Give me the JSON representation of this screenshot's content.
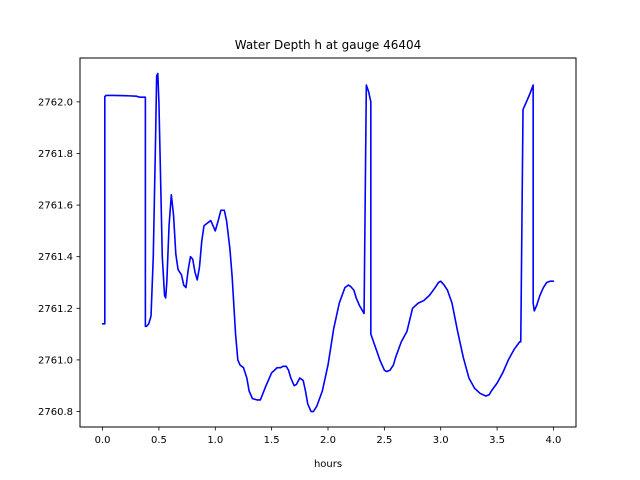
{
  "chart_data": {
    "type": "line",
    "title": "Water Depth h at gauge 46404",
    "xlabel": "hours",
    "ylabel": "",
    "xlim": [
      -0.2,
      4.2
    ],
    "ylim": [
      2760.74,
      2762.17
    ],
    "xticks": [
      0.0,
      0.5,
      1.0,
      1.5,
      2.0,
      2.5,
      3.0,
      3.5,
      4.0
    ],
    "xtick_labels": [
      "0.0",
      "0.5",
      "1.0",
      "1.5",
      "2.0",
      "2.5",
      "3.0",
      "3.5",
      "4.0"
    ],
    "yticks": [
      2760.8,
      2761.0,
      2761.2,
      2761.4,
      2761.6,
      2761.8,
      2762.0
    ],
    "ytick_labels": [
      "2760.8",
      "2761.0",
      "2761.2",
      "2761.4",
      "2761.6",
      "2761.8",
      "2762.0"
    ],
    "grid": false,
    "series": [
      {
        "color": "#0000ff",
        "x": [
          0.0,
          0.02,
          0.02,
          0.03,
          0.1,
          0.2,
          0.3,
          0.33,
          0.38,
          0.38,
          0.39,
          0.41,
          0.43,
          0.45,
          0.47,
          0.48,
          0.49,
          0.5,
          0.51,
          0.53,
          0.55,
          0.56,
          0.57,
          0.59,
          0.61,
          0.63,
          0.65,
          0.67,
          0.7,
          0.72,
          0.74,
          0.76,
          0.78,
          0.8,
          0.82,
          0.84,
          0.86,
          0.88,
          0.9,
          0.93,
          0.96,
          0.98,
          1.0,
          1.02,
          1.05,
          1.08,
          1.1,
          1.13,
          1.15,
          1.18,
          1.2,
          1.22,
          1.25,
          1.28,
          1.3,
          1.33,
          1.37,
          1.4,
          1.45,
          1.5,
          1.55,
          1.58,
          1.6,
          1.63,
          1.65,
          1.67,
          1.7,
          1.72,
          1.75,
          1.78,
          1.8,
          1.82,
          1.85,
          1.87,
          1.9,
          1.95,
          2.0,
          2.05,
          2.1,
          2.15,
          2.18,
          2.2,
          2.23,
          2.25,
          2.28,
          2.32,
          2.34,
          2.34,
          2.36,
          2.38,
          2.38,
          2.42,
          2.46,
          2.5,
          2.52,
          2.55,
          2.58,
          2.6,
          2.65,
          2.7,
          2.75,
          2.8,
          2.85,
          2.9,
          2.95,
          2.98,
          3.0,
          3.03,
          3.06,
          3.1,
          3.15,
          3.2,
          3.25,
          3.3,
          3.35,
          3.4,
          3.43,
          3.45,
          3.5,
          3.55,
          3.6,
          3.65,
          3.7,
          3.71,
          3.73,
          3.76,
          3.79,
          3.82,
          3.82,
          3.83,
          3.85,
          3.88,
          3.91,
          3.94,
          3.97,
          4.0
        ],
        "y": [
          2761.14,
          2761.14,
          2762.02,
          2762.025,
          2762.025,
          2762.024,
          2762.022,
          2762.018,
          2762.018,
          2761.13,
          2761.13,
          2761.14,
          2761.17,
          2761.4,
          2761.85,
          2762.1,
          2762.11,
          2762.0,
          2761.8,
          2761.4,
          2761.25,
          2761.24,
          2761.3,
          2761.52,
          2761.64,
          2761.56,
          2761.41,
          2761.35,
          2761.33,
          2761.29,
          2761.28,
          2761.35,
          2761.4,
          2761.39,
          2761.34,
          2761.31,
          2761.36,
          2761.46,
          2761.52,
          2761.53,
          2761.54,
          2761.52,
          2761.5,
          2761.53,
          2761.58,
          2761.58,
          2761.54,
          2761.43,
          2761.32,
          2761.1,
          2761.0,
          2760.98,
          2760.97,
          2760.93,
          2760.88,
          2760.85,
          2760.845,
          2760.845,
          2760.9,
          2760.95,
          2760.97,
          2760.97,
          2760.975,
          2760.975,
          2760.96,
          2760.93,
          2760.9,
          2760.905,
          2760.93,
          2760.92,
          2760.88,
          2760.83,
          2760.8,
          2760.8,
          2760.82,
          2760.88,
          2760.98,
          2761.12,
          2761.22,
          2761.28,
          2761.29,
          2761.285,
          2761.27,
          2761.24,
          2761.21,
          2761.18,
          2762.065,
          2762.065,
          2762.04,
          2762.0,
          2761.1,
          2761.05,
          2761.0,
          2760.96,
          2760.955,
          2760.96,
          2760.98,
          2761.01,
          2761.07,
          2761.11,
          2761.2,
          2761.22,
          2761.23,
          2761.25,
          2761.28,
          2761.3,
          2761.305,
          2761.29,
          2761.27,
          2761.22,
          2761.11,
          2761.01,
          2760.93,
          2760.89,
          2760.87,
          2760.86,
          2760.865,
          2760.88,
          2760.91,
          2760.95,
          2761.0,
          2761.04,
          2761.07,
          2761.07,
          2761.97,
          2762.0,
          2762.03,
          2762.065,
          2761.22,
          2761.19,
          2761.21,
          2761.25,
          2761.28,
          2761.3,
          2761.305,
          2761.305
        ]
      }
    ]
  }
}
